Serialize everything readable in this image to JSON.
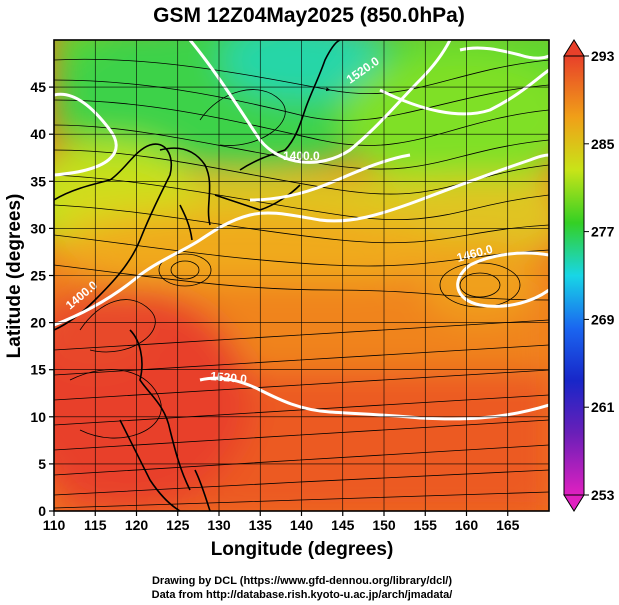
{
  "title": "GSM 12Z04May2025 (850.0hPa)",
  "xlabel": "Longitude (degrees)",
  "ylabel": "Latitude  (degrees)",
  "xticks": [
    "110",
    "115",
    "120",
    "125",
    "130",
    "135",
    "140",
    "145",
    "150",
    "155",
    "160",
    "165"
  ],
  "yticks": [
    "0",
    "5",
    "10",
    "15",
    "20",
    "25",
    "30",
    "35",
    "40",
    "45"
  ],
  "colorbar_ticks": [
    "253",
    "261",
    "269",
    "277",
    "285",
    "293"
  ],
  "contour_labels": [
    "1400.0",
    "1400.0",
    "1460.0",
    "1520.0",
    "1520.0"
  ],
  "credit_line1": "Drawing by DCL (https://www.gfd-dennou.org/library/dcl/)",
  "credit_line2": "Data from http://database.rish.kyoto-u.ac.jp/arch/jmadata/",
  "chart_data": {
    "type": "map",
    "xlim": [
      110,
      170
    ],
    "ylim": [
      0,
      50
    ],
    "grid": true,
    "colorbar": {
      "min": 253,
      "max": 293,
      "ticks": [
        253,
        261,
        269,
        277,
        285,
        293
      ]
    },
    "field": "temperature (shaded), geopotential height (white contours), wind (streamlines)",
    "contours": [
      {
        "level": "1400.0",
        "lon": 140.5,
        "lat": 41.0
      },
      {
        "level": "1400.0",
        "lon": 113.5,
        "lat": 23.0
      },
      {
        "level": "1460.0",
        "lon": 157.5,
        "lat": 28.0
      },
      {
        "level": "1520.0",
        "lon": 127.5,
        "lat": 14.5
      },
      {
        "level": "1520.0",
        "lon": 147.0,
        "lat": 36.0
      }
    ]
  }
}
